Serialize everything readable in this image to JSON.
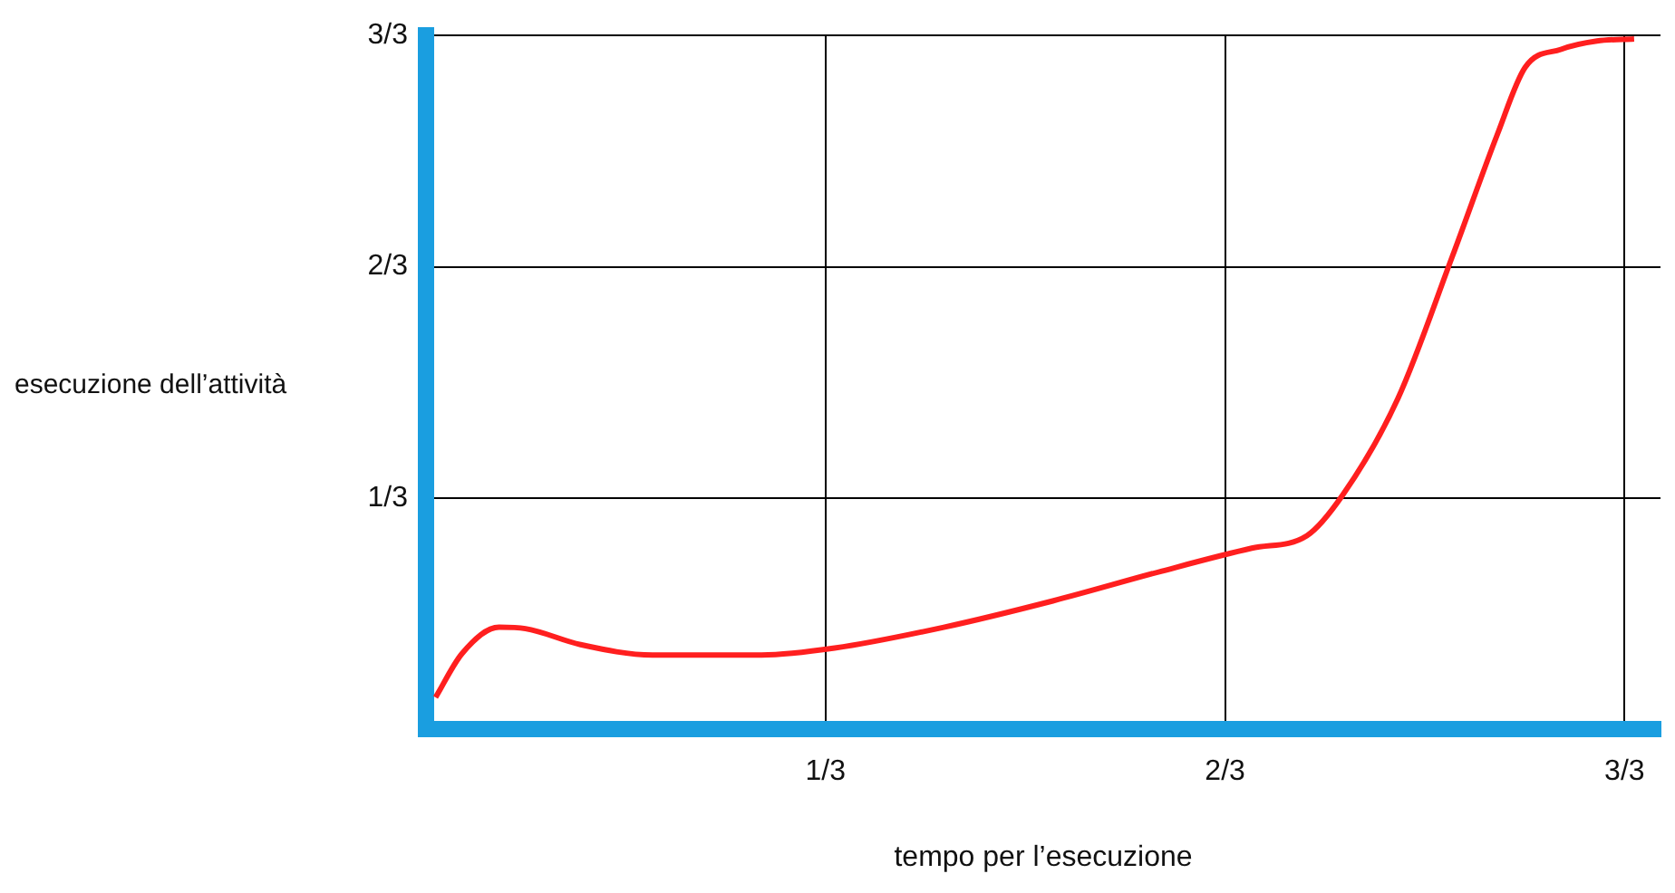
{
  "chart_data": {
    "type": "line",
    "xlabel": "tempo per l’esecuzione",
    "ylabel": "esecuzione dell’attività",
    "xlim": [
      0,
      1.03
    ],
    "ylim": [
      0,
      1
    ],
    "xticks": [
      {
        "value": 0.3333,
        "label": "1/3"
      },
      {
        "value": 0.6667,
        "label": "2/3"
      },
      {
        "value": 1,
        "label": "3/3"
      }
    ],
    "yticks": [
      {
        "value": 0.3333,
        "label": "1/3"
      },
      {
        "value": 0.6667,
        "label": "2/3"
      },
      {
        "value": 1,
        "label": "3/3"
      }
    ],
    "grid": true,
    "legend": false,
    "marker": "none",
    "line_style": "solid",
    "series": [
      {
        "color": "#ff1f1f",
        "x": [
          0.008,
          0.03,
          0.061,
          0.083,
          0.129,
          0.189,
          0.28,
          0.341,
          0.432,
          0.523,
          0.614,
          0.689,
          0.735,
          0.765,
          0.811,
          0.856,
          0.894,
          0.917,
          0.947,
          0.977,
          1.008
        ],
        "values": [
          0.046,
          0.109,
          0.147,
          0.145,
          0.122,
          0.107,
          0.107,
          0.117,
          0.147,
          0.185,
          0.228,
          0.261,
          0.279,
          0.338,
          0.477,
          0.68,
          0.858,
          0.954,
          0.98,
          0.992,
          0.995
        ]
      }
    ]
  }
}
